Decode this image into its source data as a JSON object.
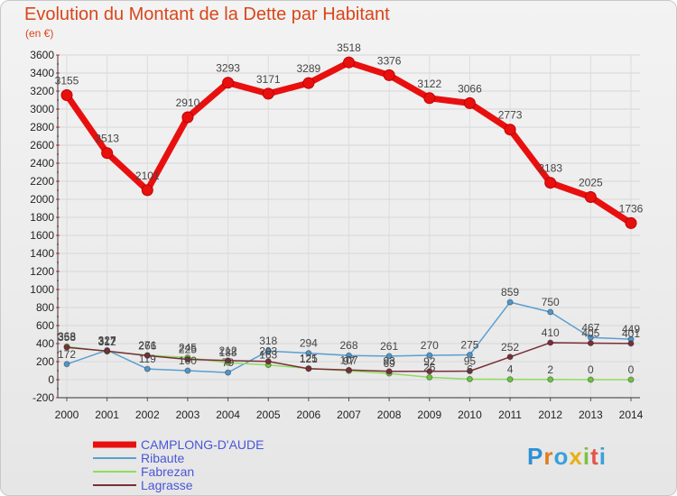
{
  "title": "Evolution du Montant de la Dette par Habitant",
  "subtitle": "(en €)",
  "logo": "Proxiti",
  "chart_data": {
    "type": "line",
    "title": "Evolution du Montant de la Dette par Habitant",
    "subtitle": "(en €)",
    "ylim": [
      -200,
      3600
    ],
    "y_ticks": [
      -200,
      0,
      200,
      400,
      600,
      800,
      1000,
      1200,
      1400,
      1600,
      1800,
      2000,
      2200,
      2400,
      2600,
      2800,
      3000,
      3200,
      3400,
      3600
    ],
    "x": [
      "2000",
      "2001",
      "2002",
      "2003",
      "2004",
      "2005",
      "2006",
      "2007",
      "2008",
      "2009",
      "2010",
      "2011",
      "2012",
      "2013",
      "2014"
    ],
    "grid": true,
    "legend_position": "bottom-left",
    "series": [
      {
        "name": "CAMPLONG-D'AUDE",
        "color": "#e8100f",
        "values": [
          3155,
          2513,
          2101,
          2910,
          3293,
          3171,
          3289,
          3518,
          3376,
          3122,
          3066,
          2773,
          2183,
          2025,
          1736
        ]
      },
      {
        "name": "Ribaute",
        "color": "#5a9fd0",
        "values": [
          172,
          327,
          119,
          100,
          79,
          318,
          294,
          268,
          261,
          270,
          275,
          859,
          750,
          467,
          449
        ]
      },
      {
        "name": "Fabrezan",
        "color": "#8fdc5e",
        "values": [
          368,
          312,
          271,
          245,
          188,
          163,
          125,
          97,
          69,
          26,
          6,
          4,
          2,
          0,
          0
        ]
      },
      {
        "name": "Lagrasse",
        "color": "#7a2e3a",
        "values": [
          358,
          317,
          266,
          225,
          212,
          203,
          121,
          107,
          93,
          92,
          95,
          252,
          410,
          405,
          401
        ]
      }
    ]
  }
}
